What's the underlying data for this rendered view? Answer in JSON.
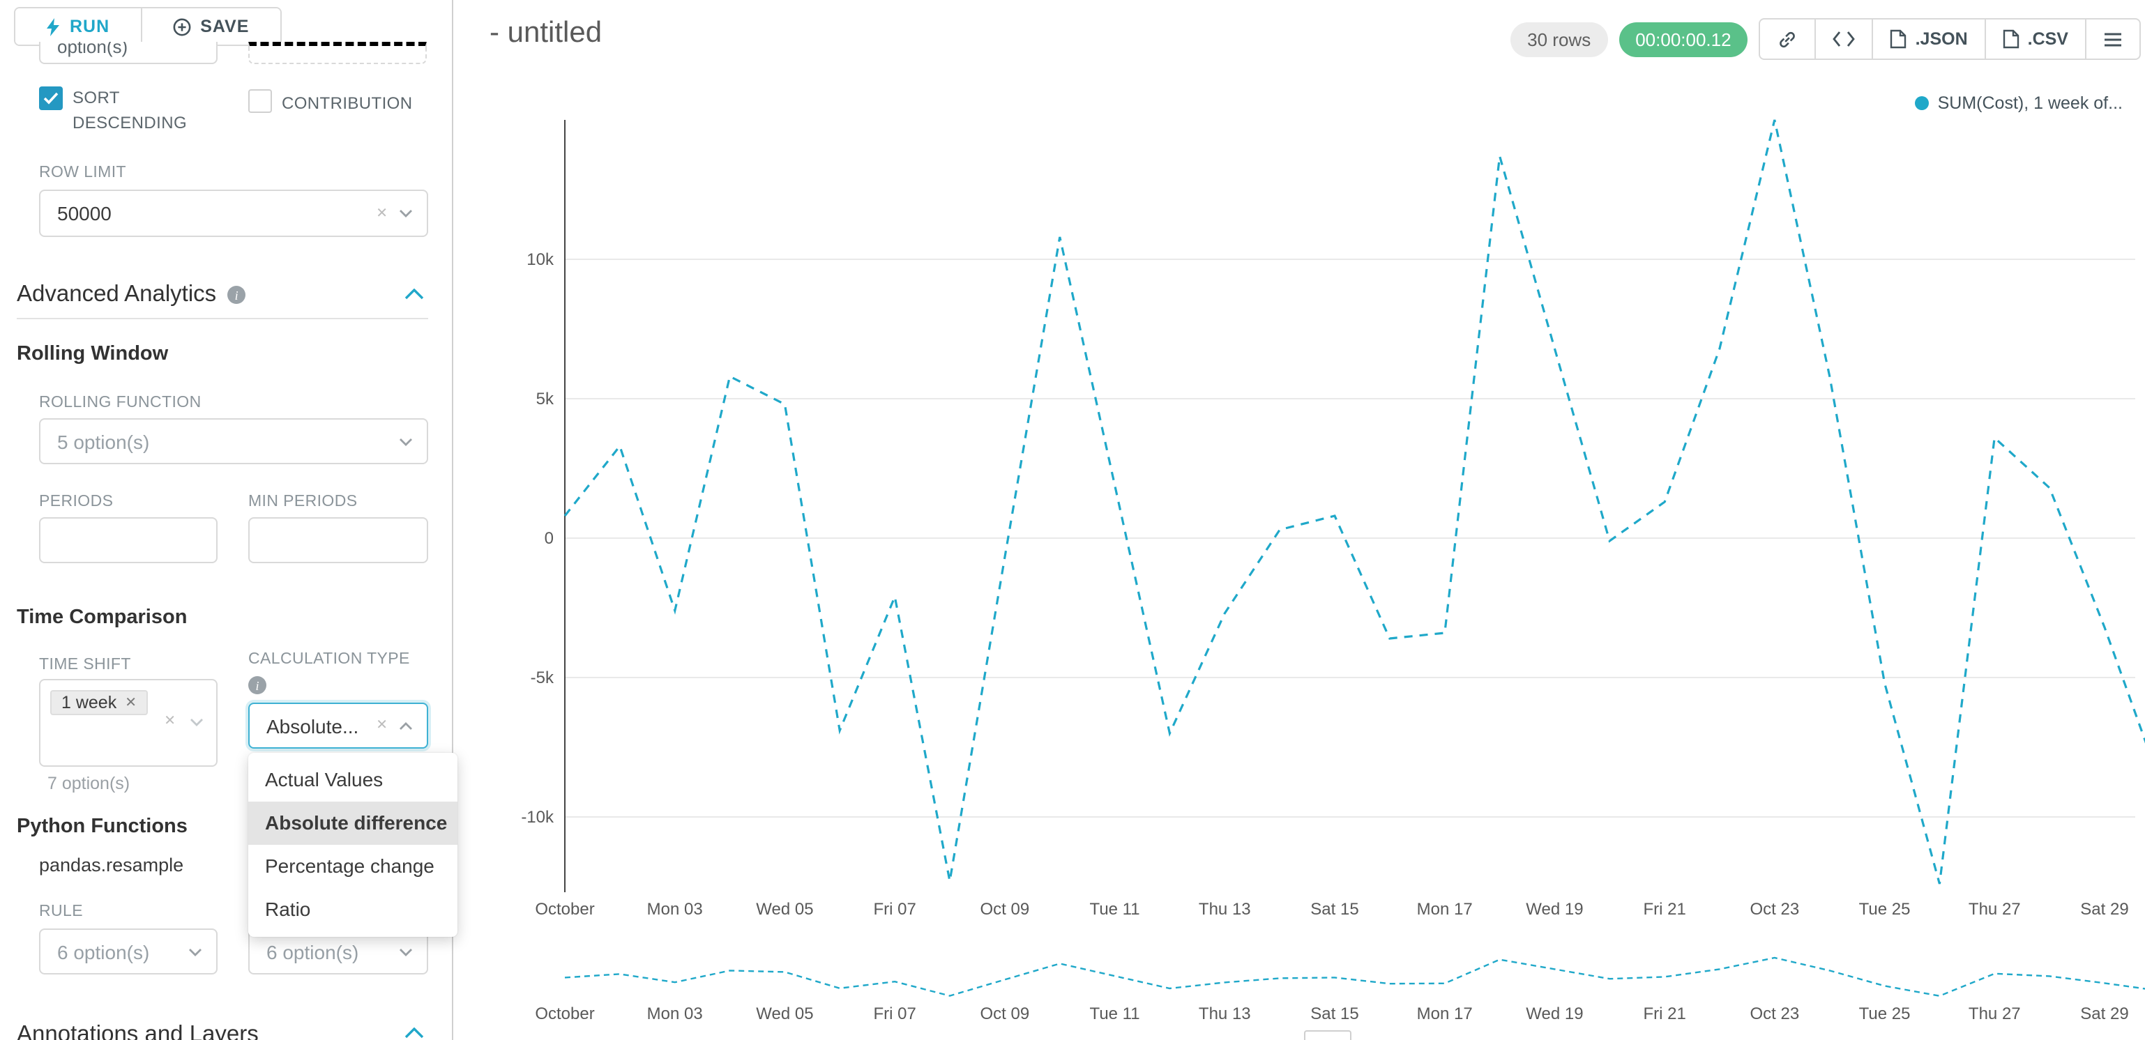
{
  "toolbar": {
    "run_label": "RUN",
    "save_label": "SAVE"
  },
  "panel": {
    "clipped_option_text": "option(s)",
    "sort_descending_label": "SORT DESCENDING",
    "contribution_label": "CONTRIBUTION",
    "row_limit_label": "ROW LIMIT",
    "row_limit_value": "50000",
    "advanced_analytics_title": "Advanced Analytics",
    "rolling_window": {
      "title": "Rolling Window",
      "rolling_function_label": "ROLLING FUNCTION",
      "rolling_function_value": "5 option(s)",
      "periods_label": "PERIODS",
      "min_periods_label": "MIN PERIODS"
    },
    "time_comparison": {
      "title": "Time Comparison",
      "time_shift_label": "TIME SHIFT",
      "time_shift_tag": "1 week",
      "time_shift_hint": "7 option(s)",
      "calculation_type_label": "CALCULATION TYPE",
      "calculation_type_value": "Absolute...",
      "dropdown_options": [
        "Actual Values",
        "Absolute difference",
        "Percentage change",
        "Ratio"
      ],
      "selected_option": "Absolute difference"
    },
    "python_functions": {
      "title": "Python Functions",
      "resample_label": "pandas.resample",
      "rule_label": "RULE",
      "rule_value": "6 option(s)",
      "rule_value_2": "6 option(s)"
    },
    "annotations_title": "Annotations and Layers"
  },
  "header": {
    "title": "- untitled",
    "rows_badge": "30 rows",
    "timer_badge": "00:00:00.12",
    "json_label": ".JSON",
    "csv_label": ".CSV"
  },
  "chart_data": {
    "type": "line",
    "title": "",
    "legend": "SUM(Cost), 1 week of...",
    "color": "#1FA8C9",
    "line_style": "dashed",
    "grid": true,
    "legend_position": "top-right",
    "has_preview_strip": true,
    "x_tick_labels": [
      "October",
      "Mon 03",
      "Wed 05",
      "Fri 07",
      "Oct 09",
      "Tue 11",
      "Thu 13",
      "Sat 15",
      "Mon 17",
      "Wed 19",
      "Fri 21",
      "Oct 23",
      "Tue 25",
      "Thu 27",
      "Sat 29"
    ],
    "y_tick_labels": [
      "10k",
      "5k",
      "0",
      "-5k",
      "-10k"
    ],
    "y_tick_values": [
      10000,
      5000,
      0,
      -5000,
      -10000
    ],
    "ylim": [
      -13000,
      15000
    ],
    "series": [
      {
        "name": "SUM(Cost), 1 week of...",
        "values": [
          800,
          3300,
          -2600,
          5800,
          4800,
          -6900,
          -2100,
          -12300,
          -700,
          10800,
          1900,
          -7000,
          -2700,
          300,
          800,
          -3600,
          -3400,
          13700,
          6800,
          -100,
          1300,
          6800,
          15000,
          5800,
          -5200,
          -12400,
          3600,
          1800,
          -3200,
          -8700
        ]
      }
    ]
  }
}
